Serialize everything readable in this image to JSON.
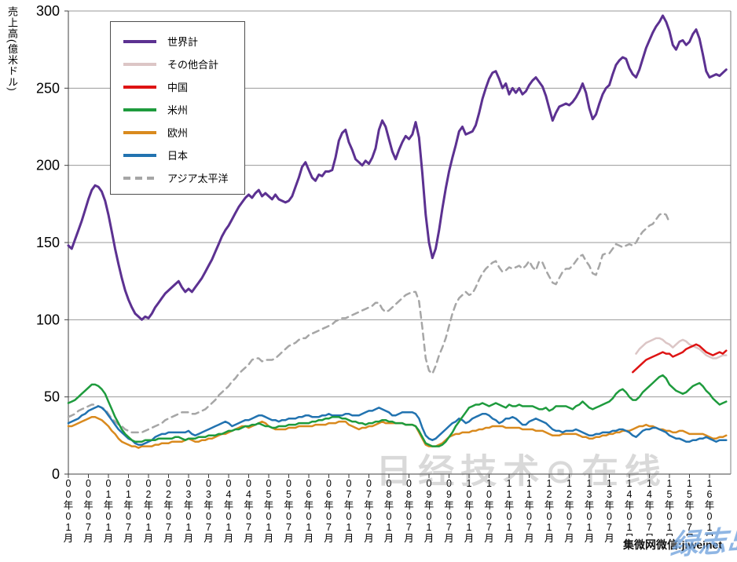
{
  "y_axis_title": "売上高(億米ドル)",
  "watermarks": {
    "center": "日经技术⊙在线",
    "bottom_right_black": "集微网微信:jiweinet",
    "bottom_right_blue": "绿志岛"
  },
  "chart_data": {
    "type": "line",
    "title": "",
    "xlabel": "",
    "ylabel": "売上高(億米ドル)",
    "ylim": [
      0,
      300
    ],
    "yticks": [
      0,
      50,
      100,
      150,
      200,
      250,
      300
    ],
    "grid": true,
    "legend_position": "top-left",
    "x_unit": "months since 2000-01",
    "months_total": 198,
    "x_tick_every_months": 6,
    "x_tick_labels": [
      "00年01月",
      "00年07月",
      "01年01月",
      "01年07月",
      "02年01月",
      "02年07月",
      "03年01月",
      "03年07月",
      "04年01月",
      "04年07月",
      "05年01月",
      "05年07月",
      "06年01月",
      "06年07月",
      "07年01月",
      "07年07月",
      "08年01月",
      "08年07月",
      "09年01月",
      "09年07月",
      "10年01月",
      "10年07月",
      "11年01月",
      "11年07月",
      "12年01月",
      "12年07月",
      "13年01月",
      "13年07月",
      "14年01月",
      "14年07月",
      "15年01月",
      "15年07月",
      "16年01月"
    ],
    "series": [
      {
        "name": "世界計",
        "key": "world-total",
        "color": "#5C3191",
        "style": "solid",
        "width": 3,
        "start_month": 0,
        "values": [
          148,
          146,
          152,
          158,
          164,
          171,
          178,
          184,
          187,
          186,
          183,
          177,
          168,
          157,
          146,
          136,
          127,
          119,
          113,
          108,
          104,
          102,
          100,
          102,
          101,
          104,
          108,
          111,
          114,
          117,
          119,
          121,
          123,
          125,
          121,
          118,
          120,
          118,
          121,
          124,
          127,
          131,
          135,
          139,
          144,
          149,
          154,
          158,
          161,
          165,
          169,
          173,
          176,
          179,
          181,
          179,
          182,
          184,
          180,
          182,
          180,
          178,
          181,
          178,
          177,
          176,
          177,
          180,
          186,
          192,
          199,
          202,
          197,
          192,
          190,
          194,
          193,
          196,
          196,
          197,
          205,
          216,
          221,
          223,
          215,
          210,
          204,
          202,
          200,
          203,
          201,
          205,
          211,
          223,
          229,
          225,
          217,
          209,
          204,
          210,
          215,
          219,
          217,
          220,
          228,
          218,
          195,
          168,
          150,
          140,
          146,
          158,
          172,
          185,
          196,
          205,
          213,
          222,
          225,
          220,
          221,
          222,
          226,
          234,
          243,
          250,
          256,
          260,
          261,
          256,
          250,
          253,
          246,
          250,
          247,
          250,
          246,
          248,
          252,
          255,
          257,
          254,
          251,
          245,
          237,
          229,
          234,
          238,
          239,
          240,
          239,
          241,
          244,
          248,
          253,
          247,
          237,
          230,
          233,
          240,
          246,
          250,
          252,
          259,
          265,
          268,
          270,
          269,
          263,
          259,
          257,
          262,
          269,
          276,
          281,
          286,
          290,
          293,
          297,
          293,
          287,
          278,
          275,
          280,
          281,
          278,
          280,
          285,
          288,
          282,
          272,
          261,
          257,
          258,
          259,
          258,
          260,
          262
        ]
      },
      {
        "name": "その他合計",
        "key": "others-total",
        "color": "#DCC6C6",
        "style": "solid",
        "width": 2.5,
        "start_month": 170,
        "values": [
          78,
          81,
          83,
          85,
          86,
          87,
          88,
          88,
          87,
          85,
          84,
          82,
          84,
          86,
          87,
          86,
          84,
          83,
          82,
          81,
          79,
          77,
          76,
          75,
          75,
          76,
          77,
          77
        ]
      },
      {
        "name": "中国",
        "key": "china",
        "color": "#DE1414",
        "style": "solid",
        "width": 2.5,
        "start_month": 169,
        "values": [
          66,
          68,
          70,
          72,
          74,
          75,
          76,
          77,
          78,
          79,
          78,
          78,
          76,
          77,
          78,
          79,
          81,
          82,
          83,
          84,
          83,
          81,
          79,
          78,
          77,
          78,
          79,
          78,
          80
        ]
      },
      {
        "name": "米州",
        "key": "americas",
        "color": "#1E9B3D",
        "style": "solid",
        "width": 2.5,
        "start_month": 0,
        "values": [
          46,
          47,
          48,
          50,
          52,
          54,
          56,
          58,
          58,
          57,
          55,
          52,
          47,
          42,
          37,
          33,
          29,
          26,
          24,
          22,
          21,
          21,
          21,
          22,
          22,
          22,
          22,
          23,
          23,
          23,
          23,
          23,
          24,
          24,
          23,
          22,
          23,
          23,
          23,
          24,
          24,
          24,
          25,
          25,
          25,
          26,
          26,
          27,
          28,
          28,
          29,
          29,
          30,
          31,
          31,
          32,
          32,
          33,
          32,
          31,
          31,
          30,
          30,
          31,
          31,
          31,
          32,
          32,
          32,
          33,
          33,
          33,
          33,
          34,
          34,
          35,
          35,
          36,
          36,
          37,
          37,
          37,
          36,
          36,
          35,
          34,
          34,
          33,
          33,
          32,
          33,
          33,
          34,
          34,
          35,
          35,
          34,
          34,
          33,
          33,
          33,
          32,
          32,
          32,
          31,
          28,
          24,
          20,
          19,
          18,
          18,
          18,
          19,
          21,
          24,
          27,
          31,
          34,
          37,
          40,
          43,
          44,
          45,
          45,
          46,
          45,
          44,
          45,
          46,
          45,
          44,
          43,
          45,
          44,
          44,
          45,
          44,
          44,
          44,
          44,
          43,
          42,
          42,
          43,
          41,
          42,
          44,
          44,
          44,
          44,
          43,
          42,
          44,
          45,
          47,
          45,
          43,
          42,
          43,
          44,
          45,
          46,
          47,
          49,
          52,
          54,
          55,
          53,
          50,
          48,
          48,
          50,
          53,
          55,
          57,
          59,
          61,
          63,
          64,
          62,
          58,
          56,
          54,
          53,
          52,
          53,
          55,
          57,
          58,
          59,
          57,
          54,
          52,
          49,
          47,
          45,
          46,
          47
        ]
      },
      {
        "name": "欧州",
        "key": "europe",
        "color": "#D98A1E",
        "style": "solid",
        "width": 2.5,
        "start_month": 0,
        "values": [
          31,
          31,
          32,
          33,
          34,
          35,
          36,
          37,
          37,
          36,
          35,
          33,
          31,
          28,
          26,
          23,
          21,
          20,
          19,
          18,
          18,
          17,
          18,
          18,
          18,
          18,
          19,
          19,
          20,
          20,
          20,
          21,
          21,
          21,
          21,
          22,
          23,
          22,
          21,
          21,
          22,
          22,
          23,
          23,
          24,
          25,
          26,
          26,
          27,
          28,
          29,
          30,
          31,
          31,
          30,
          31,
          32,
          33,
          34,
          33,
          31,
          30,
          29,
          29,
          29,
          29,
          30,
          30,
          30,
          31,
          31,
          31,
          31,
          31,
          32,
          32,
          32,
          32,
          33,
          33,
          33,
          34,
          34,
          34,
          32,
          31,
          30,
          29,
          30,
          30,
          31,
          31,
          32,
          33,
          34,
          33,
          33,
          33,
          33,
          33,
          33,
          32,
          32,
          32,
          31,
          27,
          23,
          19,
          18,
          18,
          18,
          19,
          20,
          22,
          24,
          25,
          26,
          26,
          27,
          27,
          27,
          28,
          28,
          29,
          29,
          30,
          30,
          31,
          31,
          31,
          31,
          30,
          30,
          30,
          30,
          30,
          29,
          29,
          29,
          29,
          28,
          28,
          28,
          27,
          26,
          25,
          25,
          25,
          26,
          26,
          26,
          26,
          26,
          25,
          24,
          24,
          23,
          23,
          24,
          24,
          25,
          25,
          26,
          26,
          27,
          27,
          28,
          28,
          28,
          29,
          30,
          31,
          31,
          32,
          31,
          31,
          30,
          29,
          29,
          28,
          28,
          27,
          27,
          28,
          28,
          27,
          26,
          26,
          26,
          26,
          26,
          25,
          24,
          23,
          23,
          24,
          24,
          25
        ]
      },
      {
        "name": "日本",
        "key": "japan",
        "color": "#2273B0",
        "style": "solid",
        "width": 2.5,
        "start_month": 0,
        "values": [
          33,
          34,
          35,
          36,
          38,
          39,
          41,
          42,
          43,
          44,
          43,
          41,
          38,
          35,
          32,
          29,
          27,
          25,
          23,
          22,
          20,
          19,
          19,
          20,
          21,
          22,
          24,
          25,
          26,
          26,
          27,
          27,
          27,
          27,
          27,
          27,
          28,
          26,
          25,
          26,
          27,
          28,
          29,
          30,
          31,
          32,
          33,
          34,
          33,
          31,
          32,
          33,
          34,
          35,
          35,
          36,
          37,
          38,
          38,
          37,
          36,
          35,
          35,
          34,
          35,
          35,
          36,
          36,
          36,
          37,
          37,
          38,
          38,
          37,
          37,
          37,
          38,
          38,
          39,
          38,
          38,
          38,
          38,
          39,
          39,
          38,
          38,
          38,
          39,
          40,
          41,
          41,
          42,
          43,
          42,
          41,
          40,
          38,
          38,
          39,
          40,
          40,
          40,
          40,
          39,
          36,
          30,
          25,
          23,
          22,
          23,
          25,
          27,
          29,
          31,
          33,
          34,
          36,
          35,
          33,
          34,
          36,
          37,
          38,
          39,
          39,
          38,
          36,
          35,
          33,
          34,
          36,
          36,
          37,
          36,
          34,
          32,
          32,
          34,
          35,
          36,
          35,
          34,
          33,
          31,
          29,
          28,
          28,
          27,
          28,
          28,
          28,
          29,
          28,
          27,
          26,
          25,
          25,
          26,
          26,
          27,
          27,
          27,
          28,
          28,
          29,
          29,
          28,
          27,
          25,
          24,
          26,
          28,
          29,
          29,
          30,
          30,
          29,
          28,
          27,
          25,
          24,
          23,
          23,
          22,
          21,
          21,
          22,
          22,
          23,
          23,
          24,
          23,
          22,
          21,
          22,
          22,
          22
        ]
      },
      {
        "name": "アジア太平洋",
        "key": "asia-pacific",
        "color": "#A6A6A6",
        "style": "dashed",
        "width": 2.5,
        "start_month": 0,
        "values": [
          37,
          38,
          39,
          41,
          42,
          43,
          44,
          45,
          45,
          44,
          43,
          42,
          39,
          36,
          34,
          32,
          31,
          29,
          28,
          27,
          27,
          27,
          27,
          28,
          29,
          30,
          31,
          32,
          33,
          35,
          36,
          37,
          38,
          39,
          40,
          40,
          40,
          39,
          39,
          40,
          41,
          42,
          44,
          46,
          48,
          51,
          53,
          55,
          57,
          60,
          62,
          65,
          67,
          69,
          71,
          74,
          75,
          75,
          73,
          74,
          74,
          74,
          75,
          77,
          79,
          81,
          83,
          84,
          85,
          87,
          88,
          88,
          90,
          91,
          92,
          93,
          94,
          95,
          96,
          97,
          99,
          100,
          101,
          101,
          102,
          103,
          104,
          105,
          106,
          107,
          108,
          109,
          111,
          111,
          107,
          105,
          106,
          108,
          110,
          112,
          114,
          116,
          117,
          118,
          118,
          112,
          95,
          75,
          67,
          65,
          70,
          77,
          82,
          88,
          96,
          104,
          110,
          114,
          116,
          118,
          116,
          117,
          121,
          126,
          130,
          133,
          135,
          137,
          138,
          134,
          131,
          132,
          134,
          133,
          134,
          135,
          133,
          135,
          138,
          134,
          132,
          138,
          137,
          132,
          128,
          124,
          123,
          127,
          131,
          133,
          133,
          135,
          138,
          141,
          142,
          138,
          135,
          130,
          129,
          135,
          142,
          143,
          143,
          146,
          149,
          148,
          147,
          148,
          149,
          148,
          150,
          154,
          157,
          159,
          161,
          162,
          165,
          168,
          169,
          168,
          163
        ]
      }
    ]
  }
}
